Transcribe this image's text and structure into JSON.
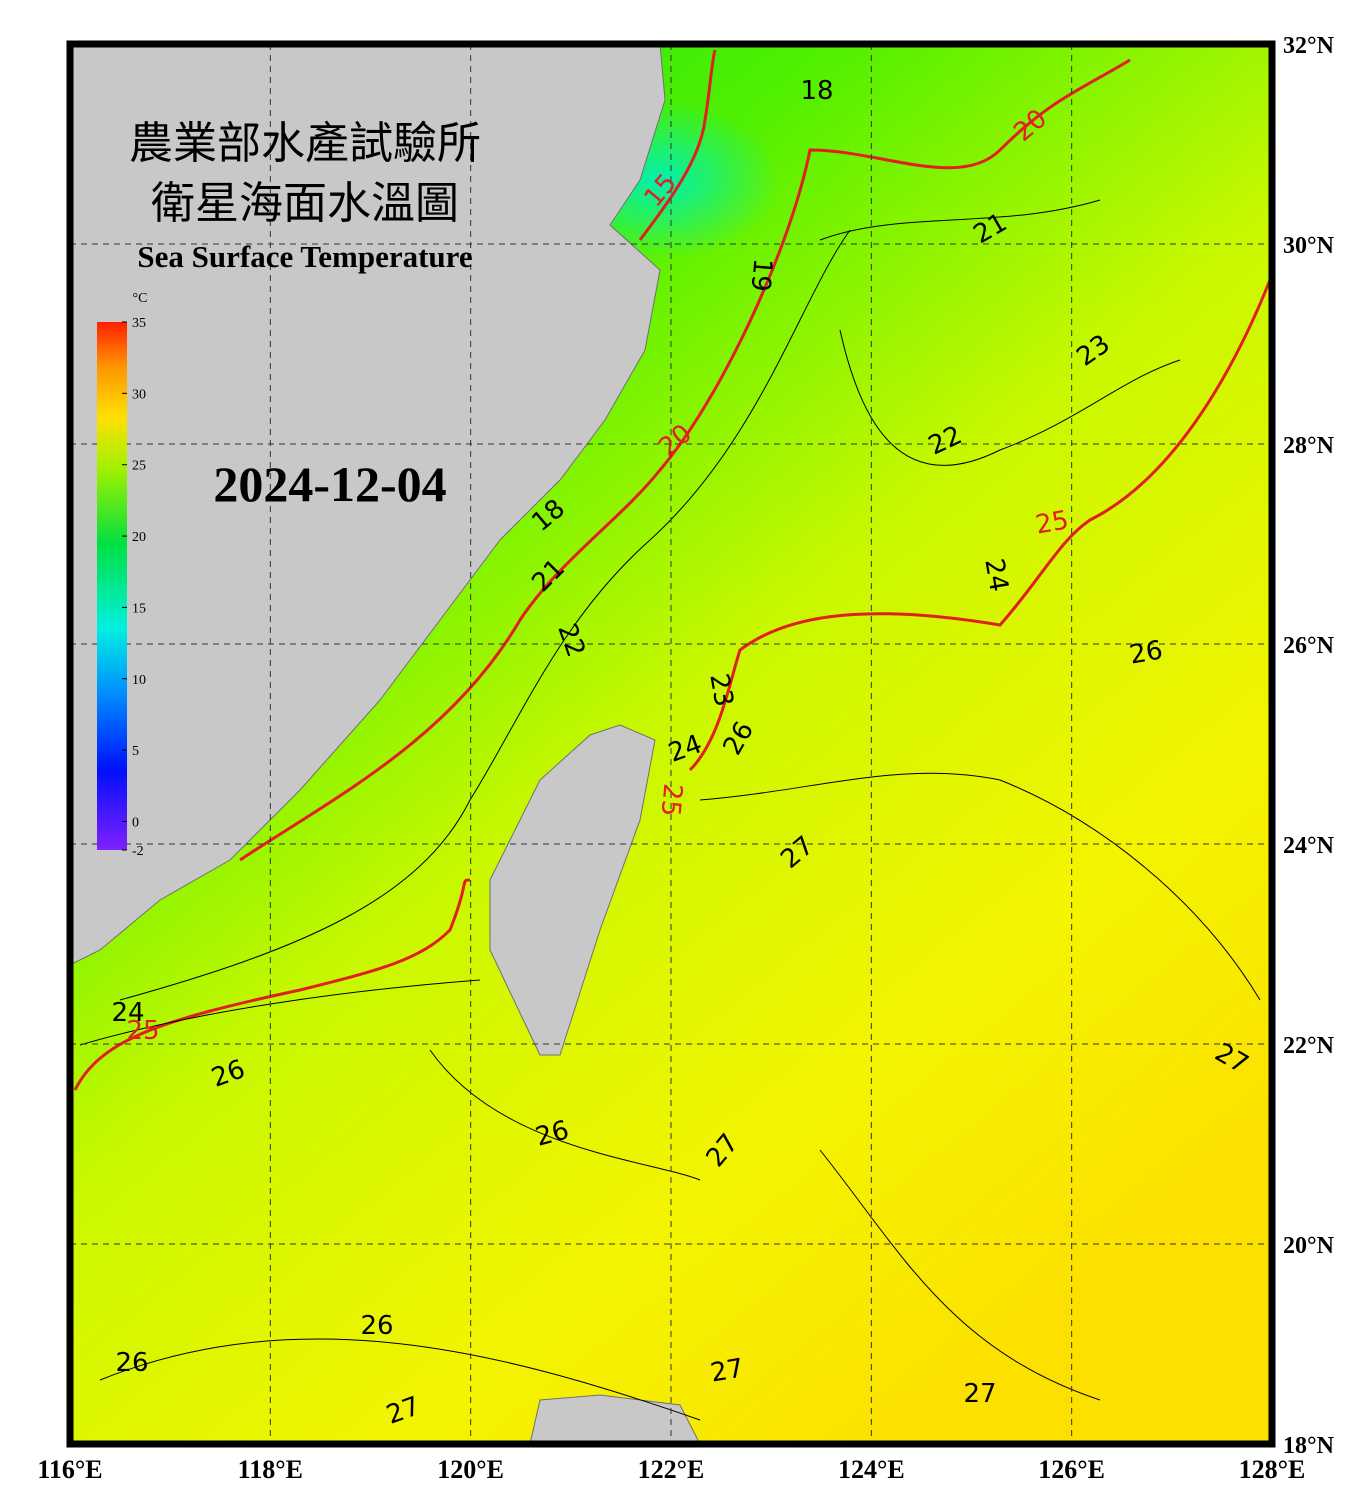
{
  "header": {
    "title_zh_1": "農業部水產試驗所",
    "title_zh_2": "衛星海面水溫圖",
    "title_en": "Sea Surface Temperature",
    "date": "2024-12-04"
  },
  "map": {
    "xlim": [
      116,
      128
    ],
    "ylim": [
      18,
      32
    ],
    "xticks": [
      {
        "value": 116,
        "label": "116°E"
      },
      {
        "value": 118,
        "label": "118°E"
      },
      {
        "value": 120,
        "label": "120°E"
      },
      {
        "value": 122,
        "label": "122°E"
      },
      {
        "value": 124,
        "label": "124°E"
      },
      {
        "value": 126,
        "label": "126°E"
      },
      {
        "value": 128,
        "label": "128°E"
      }
    ],
    "yticks": [
      {
        "value": 18,
        "label": "18°N"
      },
      {
        "value": 20,
        "label": "20°N"
      },
      {
        "value": 22,
        "label": "22°N"
      },
      {
        "value": 24,
        "label": "24°N"
      },
      {
        "value": 26,
        "label": "26°N"
      },
      {
        "value": 28,
        "label": "28°N"
      },
      {
        "value": 30,
        "label": "30°N"
      },
      {
        "value": 32,
        "label": "32°N"
      }
    ]
  },
  "colorbar": {
    "unit": "°C",
    "lim": [
      -2,
      35
    ],
    "ticks": [
      35,
      30,
      25,
      20,
      15,
      10,
      5,
      0,
      -2
    ]
  },
  "contour_labels": [
    18,
    20,
    21,
    23,
    22,
    25,
    24,
    26,
    19,
    20,
    15,
    18,
    21,
    22,
    23,
    24,
    26,
    25,
    27,
    27,
    26,
    26,
    27,
    26,
    26,
    27,
    27,
    27,
    25,
    24
  ]
}
